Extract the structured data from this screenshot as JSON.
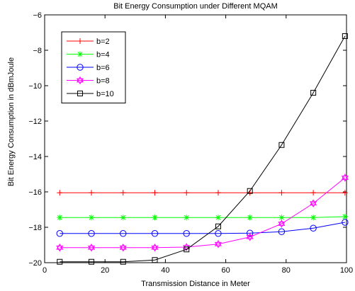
{
  "chart_data": {
    "type": "line",
    "title": "Bit Energy Consumption under Different MQAM",
    "xlabel": "Transmission Distance in Meter",
    "ylabel": "Bit Energy Consumption in dBmJoule",
    "xlim": [
      0,
      100
    ],
    "ylim": [
      -20,
      -6
    ],
    "xticks": [
      0,
      20,
      40,
      60,
      80,
      100
    ],
    "yticks": [
      -20,
      -18,
      -16,
      -14,
      -12,
      -10,
      -8,
      -6
    ],
    "grid": false,
    "legend_position": "top-left",
    "x": [
      5,
      15.5,
      26,
      36.5,
      47,
      57.5,
      68,
      78.5,
      89,
      99.5
    ],
    "series": [
      {
        "name": "b=2",
        "color": "#ff0000",
        "marker": "plus",
        "values": [
          -16.05,
          -16.05,
          -16.05,
          -16.05,
          -16.05,
          -16.05,
          -16.05,
          -16.05,
          -16.05,
          -16.05
        ]
      },
      {
        "name": "b=4",
        "color": "#00ff00",
        "marker": "asterisk",
        "values": [
          -17.45,
          -17.45,
          -17.45,
          -17.45,
          -17.45,
          -17.45,
          -17.45,
          -17.45,
          -17.45,
          -17.4
        ]
      },
      {
        "name": "b=6",
        "color": "#0000ff",
        "marker": "circle",
        "values": [
          -18.35,
          -18.35,
          -18.35,
          -18.35,
          -18.35,
          -18.35,
          -18.33,
          -18.25,
          -18.05,
          -17.72
        ]
      },
      {
        "name": "b=8",
        "color": "#ff00ff",
        "marker": "hexagram",
        "values": [
          -19.15,
          -19.15,
          -19.15,
          -19.15,
          -19.12,
          -18.95,
          -18.55,
          -17.8,
          -16.65,
          -15.2
        ]
      },
      {
        "name": "b=10",
        "color": "#000000",
        "marker": "square",
        "values": [
          -19.95,
          -19.95,
          -19.95,
          -19.85,
          -19.25,
          -17.95,
          -15.95,
          -13.35,
          -10.4,
          -7.2
        ]
      }
    ]
  }
}
